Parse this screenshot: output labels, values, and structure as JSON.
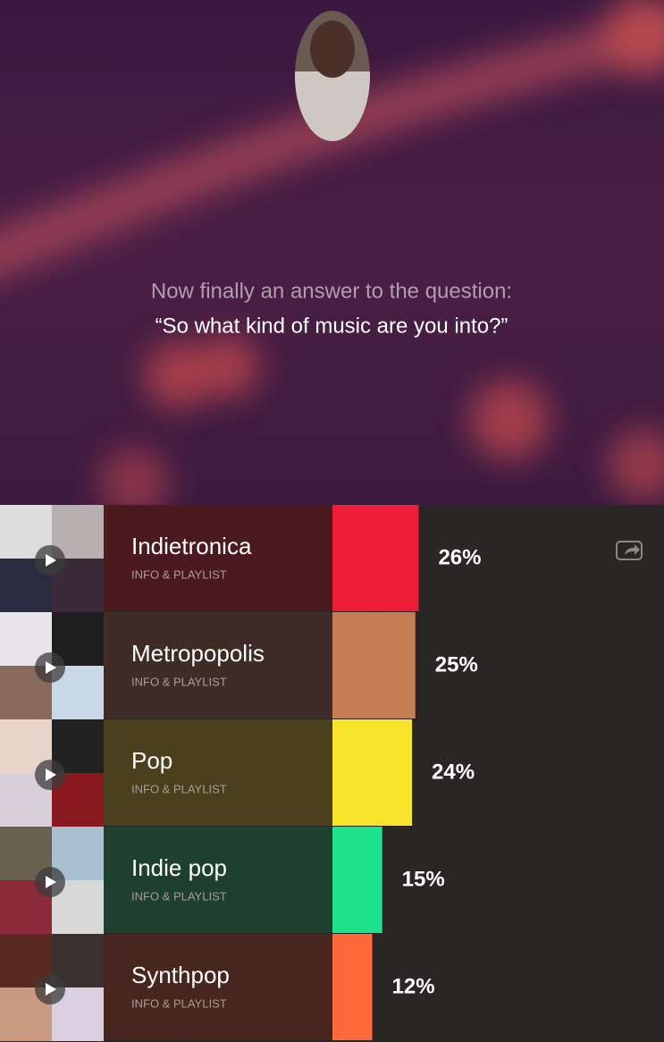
{
  "header": {
    "question_intro": "Now finally an answer to the question:",
    "question": "“So what kind of music are you into?”"
  },
  "chart_data": {
    "type": "bar",
    "orientation": "horizontal",
    "categories": [
      "Indietronica",
      "Metropopolis",
      "Pop",
      "Indie pop",
      "Synthpop"
    ],
    "values": [
      26,
      25,
      24,
      15,
      12
    ],
    "value_labels": [
      "26%",
      "25%",
      "24%",
      "15%",
      "12%"
    ],
    "link_labels": [
      "INFO & PLAYLIST",
      "INFO & PLAYLIST",
      "INFO & PLAYLIST",
      "INFO & PLAYLIST",
      "INFO & PLAYLIST"
    ],
    "bar_colors": [
      "#ed1e35",
      "#c97d55",
      "#f8e52b",
      "#1ee38c",
      "#ff6a3a"
    ],
    "row_colors": [
      "#4a1a1f",
      "#3f2c27",
      "#4b401d",
      "#1f3f2f",
      "#47261f"
    ],
    "xlim": [
      0,
      100
    ]
  }
}
